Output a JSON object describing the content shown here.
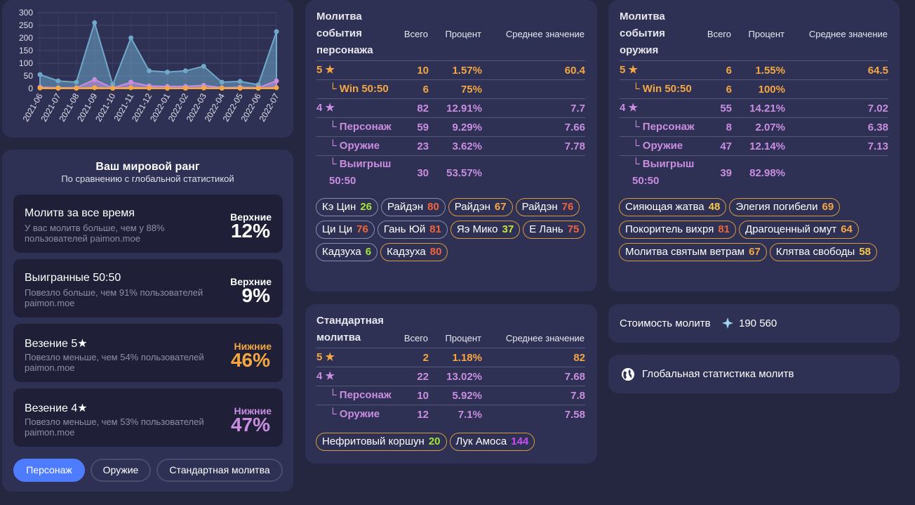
{
  "chart_data": {
    "type": "area",
    "categories": [
      "2021-06",
      "2021-07",
      "2021-08",
      "2021-09",
      "2021-10",
      "2021-11",
      "2021-12",
      "2022-01",
      "2022-02",
      "2022-03",
      "2022-04",
      "2022-05",
      "2022-06",
      "2022-07"
    ],
    "series": [
      {
        "color": "#6fa8c8",
        "values": [
          55,
          30,
          25,
          260,
          15,
          200,
          70,
          65,
          70,
          88,
          25,
          28,
          15,
          225
        ]
      },
      {
        "color": "#c98ee0",
        "values": [
          5,
          3,
          3,
          35,
          2,
          25,
          10,
          8,
          8,
          12,
          3,
          5,
          3,
          30
        ]
      },
      {
        "color": "#f5a742",
        "values": [
          2,
          1,
          1,
          3,
          1,
          3,
          2,
          1,
          1,
          2,
          1,
          1,
          1,
          3
        ]
      }
    ],
    "ylim": [
      0,
      300
    ],
    "yticks": [
      0,
      50,
      100,
      150,
      200,
      250,
      300
    ],
    "grid": true
  },
  "rank": {
    "title": "Ваш мировой ранг",
    "subtitle": "По сравнению с глобальной статистикой",
    "cards": [
      {
        "label": "Молитв за все время",
        "description": "У вас молитв больше, чем у 88% пользователей paimon.moe",
        "position": "Верхние",
        "percent": "12%",
        "color": "#ffffff"
      },
      {
        "label": "Выигранные 50:50",
        "description": "Повезло больше, чем 91% пользователей paimon.moe",
        "position": "Верхние",
        "percent": "9%",
        "color": "#ffffff"
      },
      {
        "label": "Везение 5★",
        "description": "Повезло меньше, чем 54% пользователей paimon.moe",
        "position": "Нижние",
        "percent": "46%",
        "color": "#f5a742"
      },
      {
        "label": "Везение 4★",
        "description": "Повезло меньше, чем 53% пользователей paimon.moe",
        "position": "Нижние",
        "percent": "47%",
        "color": "#c98ee0"
      }
    ]
  },
  "tabs": [
    {
      "label": "Персонаж",
      "active": true
    },
    {
      "label": "Оружие",
      "active": false
    },
    {
      "label": "Стандартная молитва",
      "active": false
    }
  ],
  "banners": [
    {
      "title": "Молитва события персонажа",
      "headers": [
        "Всего",
        "Процент",
        "Среднее значение"
      ],
      "rows": [
        {
          "cells": [
            "5 ★",
            "10",
            "1.57%",
            "60.4"
          ],
          "color": "#f5a742"
        },
        {
          "cells": [
            "└ Win 50:50",
            "6",
            "75%",
            ""
          ],
          "color": "#f5a742"
        },
        {
          "cells": [
            "4 ★",
            "82",
            "12.91%",
            "7.7"
          ],
          "color": "#c98ee0"
        },
        {
          "cells": [
            "└ Персонаж",
            "59",
            "9.29%",
            "7.66"
          ],
          "color": "#c98ee0"
        },
        {
          "cells": [
            "└ Оружие",
            "23",
            "3.62%",
            "7.78"
          ],
          "color": "#c98ee0"
        },
        {
          "cells": [
            "└ Выигрыш 50:50",
            "30",
            "53.57%",
            ""
          ],
          "color": "#c98ee0"
        }
      ],
      "pills": [
        {
          "name": "Кэ Цин",
          "count": 26,
          "border": "#8a8ca8"
        },
        {
          "name": "Райдэн",
          "count": 80,
          "border": "#8a8ca8"
        },
        {
          "name": "Райдэн",
          "count": 67,
          "border": "#d89a3e"
        },
        {
          "name": "Райдэн",
          "count": 76,
          "border": "#d89a3e"
        },
        {
          "name": "Ци Ци",
          "count": 76,
          "border": "#8a8ca8"
        },
        {
          "name": "Гань Юй",
          "count": 81,
          "border": "#8a8ca8"
        },
        {
          "name": "Яэ Мико",
          "count": 37,
          "border": "#d89a3e"
        },
        {
          "name": "Е Лань",
          "count": 75,
          "border": "#d89a3e"
        },
        {
          "name": "Кадзуха",
          "count": 6,
          "border": "#8a8ca8"
        },
        {
          "name": "Кадзуха",
          "count": 80,
          "border": "#d89a3e"
        }
      ]
    },
    {
      "title": "Молитва события оружия",
      "headers": [
        "Всего",
        "Процент",
        "Среднее значение"
      ],
      "rows": [
        {
          "cells": [
            "5 ★",
            "6",
            "1.55%",
            "64.5"
          ],
          "color": "#f5a742"
        },
        {
          "cells": [
            "└ Win 50:50",
            "6",
            "100%",
            ""
          ],
          "color": "#f5a742"
        },
        {
          "cells": [
            "4 ★",
            "55",
            "14.21%",
            "7.02"
          ],
          "color": "#c98ee0"
        },
        {
          "cells": [
            "└ Персонаж",
            "8",
            "2.07%",
            "6.38"
          ],
          "color": "#c98ee0"
        },
        {
          "cells": [
            "└ Оружие",
            "47",
            "12.14%",
            "7.13"
          ],
          "color": "#c98ee0"
        },
        {
          "cells": [
            "└ Выигрыш 50:50",
            "39",
            "82.98%",
            ""
          ],
          "color": "#c98ee0"
        }
      ],
      "pills": [
        {
          "name": "Сияющая жатва",
          "count": 48,
          "border": "#d89a3e"
        },
        {
          "name": "Элегия погибели",
          "count": 69,
          "border": "#d89a3e"
        },
        {
          "name": "Покоритель вихря",
          "count": 81,
          "border": "#d89a3e"
        },
        {
          "name": "Драгоценный омут",
          "count": 64,
          "border": "#d89a3e"
        },
        {
          "name": "Молитва святым ветрам",
          "count": 67,
          "border": "#d89a3e"
        },
        {
          "name": "Клятва свободы",
          "count": 58,
          "border": "#d89a3e"
        }
      ]
    },
    {
      "title": "Стандартная молитва",
      "headers": [
        "Всего",
        "Процент",
        "Среднее значение"
      ],
      "rows": [
        {
          "cells": [
            "5 ★",
            "2",
            "1.18%",
            "82"
          ],
          "color": "#f5a742"
        },
        {
          "cells": [
            "4 ★",
            "22",
            "13.02%",
            "7.68"
          ],
          "color": "#c98ee0"
        },
        {
          "cells": [
            "└ Персонаж",
            "10",
            "5.92%",
            "7.8"
          ],
          "color": "#c98ee0"
        },
        {
          "cells": [
            "└ Оружие",
            "12",
            "7.1%",
            "7.58"
          ],
          "color": "#c98ee0"
        }
      ],
      "pills": [
        {
          "name": "Нефритовый коршун",
          "count": 20,
          "border": "#d89a3e"
        },
        {
          "name": "Лук Амоса",
          "count": 144,
          "border": "#d89a3e"
        }
      ]
    }
  ],
  "cost": {
    "label": "Стоимость молитв",
    "value": "190 560"
  },
  "global_stats": {
    "label": "Глобальная статистика молитв"
  }
}
